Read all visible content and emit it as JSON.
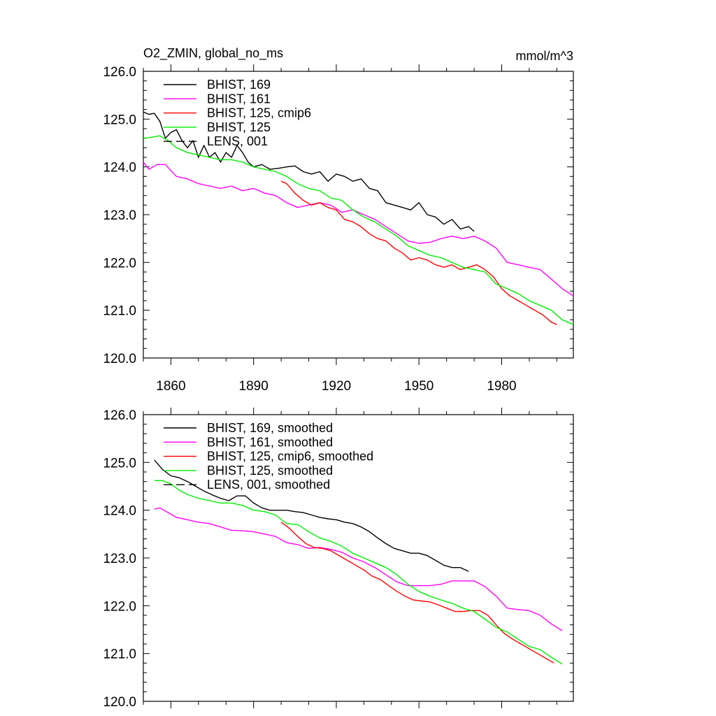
{
  "title_left": "O2_ZMIN, global_no_ms",
  "units": "mmol/m^3",
  "colors": {
    "bhist_169": "#000000",
    "bhist_161": "#ff00ff",
    "bhist_125_cmip6": "#ff0000",
    "bhist_125": "#00ee00",
    "lens_001": "#000000"
  },
  "chart_data": [
    {
      "type": "line",
      "xlim": [
        1850,
        2006
      ],
      "ylim": [
        120,
        126
      ],
      "x_ticks": [
        1860,
        1890,
        1920,
        1950,
        1980
      ],
      "y_ticks": [
        120,
        121,
        122,
        123,
        124,
        125,
        126
      ],
      "y_tick_labels": [
        "120.0",
        "121.0",
        "122.0",
        "123.0",
        "124.0",
        "125.0",
        "126.0"
      ],
      "x_tick_labels": [
        "1860",
        "1890",
        "1920",
        "1950",
        "1980"
      ],
      "grid": false,
      "legend_position": "top-left",
      "series": [
        {
          "name": "BHIST, 169",
          "color": "#000000",
          "dash": "none",
          "x": [
            1850,
            1852,
            1854,
            1856,
            1858,
            1860,
            1862,
            1864,
            1866,
            1868,
            1870,
            1872,
            1874,
            1876,
            1878,
            1880,
            1882,
            1884,
            1886,
            1888,
            1890,
            1893,
            1896,
            1899,
            1902,
            1905,
            1908,
            1911,
            1914,
            1917,
            1920,
            1923,
            1926,
            1929,
            1932,
            1935,
            1938,
            1941,
            1944,
            1947,
            1950,
            1953,
            1956,
            1959,
            1962,
            1965,
            1968,
            1970
          ],
          "y": [
            125.15,
            125.1,
            125.12,
            124.95,
            124.6,
            124.72,
            124.78,
            124.55,
            124.4,
            124.55,
            124.2,
            124.45,
            124.2,
            124.3,
            124.1,
            124.3,
            124.2,
            124.45,
            124.3,
            124.1,
            124.0,
            124.05,
            123.95,
            123.97,
            124.0,
            124.02,
            123.9,
            123.85,
            123.9,
            123.7,
            123.85,
            123.8,
            123.7,
            123.75,
            123.55,
            123.5,
            123.25,
            123.2,
            123.15,
            123.1,
            123.25,
            123.0,
            122.95,
            122.8,
            122.9,
            122.7,
            122.75,
            122.65
          ]
        },
        {
          "name": "BHIST, 161",
          "color": "#ff00ff",
          "dash": "none",
          "x": [
            1850,
            1852,
            1855,
            1858,
            1862,
            1866,
            1870,
            1874,
            1878,
            1882,
            1886,
            1890,
            1894,
            1898,
            1902,
            1906,
            1910,
            1914,
            1918,
            1922,
            1926,
            1930,
            1934,
            1938,
            1942,
            1946,
            1950,
            1954,
            1958,
            1962,
            1966,
            1970,
            1974,
            1978,
            1982,
            1986,
            1990,
            1994,
            1998,
            2002,
            2006
          ],
          "y": [
            124.1,
            123.95,
            124.05,
            124.05,
            123.8,
            123.75,
            123.65,
            123.6,
            123.55,
            123.6,
            123.5,
            123.55,
            123.45,
            123.4,
            123.25,
            123.15,
            123.2,
            123.25,
            123.2,
            123.05,
            123.1,
            123.0,
            122.9,
            122.75,
            122.6,
            122.45,
            122.4,
            122.42,
            122.5,
            122.55,
            122.5,
            122.55,
            122.45,
            122.3,
            122.0,
            121.95,
            121.9,
            121.85,
            121.65,
            121.45,
            121.3
          ]
        },
        {
          "name": "BHIST, 125, cmip6",
          "color": "#ff0000",
          "dash": "none",
          "x": [
            1900,
            1902,
            1905,
            1908,
            1911,
            1914,
            1917,
            1920,
            1923,
            1926,
            1929,
            1932,
            1935,
            1938,
            1941,
            1944,
            1947,
            1950,
            1953,
            1956,
            1959,
            1962,
            1965,
            1968,
            1971,
            1974,
            1977,
            1980,
            1983,
            1986,
            1989,
            1992,
            1995,
            1998,
            2000
          ],
          "y": [
            123.7,
            123.65,
            123.45,
            123.3,
            123.2,
            123.25,
            123.15,
            123.1,
            122.9,
            122.85,
            122.75,
            122.6,
            122.5,
            122.45,
            122.3,
            122.2,
            122.05,
            122.1,
            122.05,
            121.95,
            121.9,
            121.95,
            121.85,
            121.9,
            121.95,
            121.85,
            121.7,
            121.45,
            121.3,
            121.2,
            121.1,
            121.0,
            120.9,
            120.75,
            120.7
          ]
        },
        {
          "name": "BHIST, 125",
          "color": "#00ee00",
          "dash": "none",
          "x": [
            1850,
            1853,
            1856,
            1859,
            1862,
            1866,
            1870,
            1874,
            1878,
            1882,
            1886,
            1890,
            1894,
            1898,
            1902,
            1906,
            1910,
            1914,
            1918,
            1922,
            1926,
            1930,
            1934,
            1938,
            1942,
            1946,
            1950,
            1954,
            1958,
            1962,
            1966,
            1970,
            1974,
            1978,
            1982,
            1986,
            1990,
            1994,
            1998,
            2002,
            2006
          ],
          "y": [
            124.6,
            124.62,
            124.65,
            124.55,
            124.4,
            124.3,
            124.25,
            124.2,
            124.15,
            124.15,
            124.1,
            124.0,
            123.95,
            123.9,
            123.8,
            123.65,
            123.55,
            123.5,
            123.35,
            123.3,
            123.1,
            122.95,
            122.85,
            122.7,
            122.55,
            122.35,
            122.25,
            122.15,
            122.1,
            122.0,
            121.9,
            121.85,
            121.8,
            121.55,
            121.45,
            121.35,
            121.2,
            121.1,
            121.0,
            120.8,
            120.7
          ]
        },
        {
          "name": "LENS, 001",
          "color": "#000000",
          "dash": "dashed",
          "x": [],
          "y": []
        }
      ]
    },
    {
      "type": "line",
      "xlim": [
        1850,
        2006
      ],
      "ylim": [
        120,
        126
      ],
      "x_ticks": [
        1860,
        1890,
        1920,
        1950,
        1980
      ],
      "y_ticks": [
        120,
        121,
        122,
        123,
        124,
        125,
        126
      ],
      "y_tick_labels": [
        "120.0",
        "121.0",
        "122.0",
        "123.0",
        "124.0",
        "125.0",
        "126.0"
      ],
      "x_tick_labels": [],
      "grid": false,
      "legend_position": "top-left",
      "series": [
        {
          "name": "BHIST, 169, smoothed",
          "color": "#000000",
          "dash": "none",
          "x": [
            1854,
            1857,
            1860,
            1863,
            1866,
            1869,
            1872,
            1875,
            1878,
            1881,
            1884,
            1887,
            1890,
            1893,
            1896,
            1899,
            1902,
            1905,
            1908,
            1911,
            1914,
            1917,
            1920,
            1923,
            1926,
            1929,
            1932,
            1935,
            1938,
            1941,
            1944,
            1947,
            1950,
            1953,
            1956,
            1959,
            1962,
            1965,
            1968
          ],
          "y": [
            125.05,
            124.85,
            124.72,
            124.68,
            124.6,
            124.5,
            124.4,
            124.32,
            124.25,
            124.2,
            124.3,
            124.3,
            124.15,
            124.05,
            124.0,
            124.0,
            124.0,
            123.97,
            123.95,
            123.9,
            123.85,
            123.82,
            123.8,
            123.75,
            123.72,
            123.65,
            123.55,
            123.42,
            123.3,
            123.2,
            123.15,
            123.1,
            123.1,
            123.05,
            122.95,
            122.85,
            122.8,
            122.8,
            122.72
          ]
        },
        {
          "name": "BHIST, 161, smoothed",
          "color": "#ff00ff",
          "dash": "none",
          "x": [
            1854,
            1856,
            1859,
            1862,
            1866,
            1870,
            1874,
            1878,
            1882,
            1886,
            1890,
            1894,
            1898,
            1902,
            1906,
            1910,
            1914,
            1918,
            1922,
            1926,
            1930,
            1934,
            1938,
            1942,
            1946,
            1950,
            1954,
            1958,
            1962,
            1966,
            1970,
            1974,
            1978,
            1982,
            1986,
            1990,
            1994,
            1998,
            2002
          ],
          "y": [
            124.02,
            124.05,
            123.95,
            123.85,
            123.8,
            123.75,
            123.72,
            123.65,
            123.58,
            123.57,
            123.55,
            123.5,
            123.45,
            123.32,
            123.28,
            123.2,
            123.22,
            123.18,
            123.12,
            123.0,
            122.92,
            122.8,
            122.65,
            122.5,
            122.42,
            122.42,
            122.42,
            122.45,
            122.52,
            122.52,
            122.52,
            122.4,
            122.2,
            121.95,
            121.92,
            121.9,
            121.8,
            121.62,
            121.48
          ]
        },
        {
          "name": "BHIST, 125, cmip6, smoothed",
          "color": "#ff0000",
          "dash": "none",
          "x": [
            1900,
            1903,
            1906,
            1909,
            1912,
            1915,
            1918,
            1921,
            1924,
            1927,
            1930,
            1933,
            1936,
            1939,
            1942,
            1945,
            1948,
            1951,
            1954,
            1957,
            1960,
            1963,
            1966,
            1969,
            1972,
            1975,
            1978,
            1981,
            1984,
            1987,
            1990,
            1993,
            1996,
            1999
          ],
          "y": [
            123.75,
            123.62,
            123.45,
            123.3,
            123.22,
            123.2,
            123.15,
            123.05,
            122.95,
            122.85,
            122.75,
            122.62,
            122.55,
            122.42,
            122.3,
            122.2,
            122.12,
            122.1,
            122.08,
            122.02,
            121.95,
            121.88,
            121.88,
            121.9,
            121.9,
            121.8,
            121.6,
            121.42,
            121.3,
            121.2,
            121.1,
            121.0,
            120.9,
            120.8
          ]
        },
        {
          "name": "BHIST, 125, smoothed",
          "color": "#00ee00",
          "dash": "none",
          "x": [
            1854,
            1857,
            1860,
            1863,
            1866,
            1870,
            1874,
            1878,
            1882,
            1886,
            1890,
            1894,
            1898,
            1902,
            1906,
            1910,
            1914,
            1918,
            1922,
            1926,
            1930,
            1934,
            1938,
            1942,
            1946,
            1950,
            1954,
            1958,
            1962,
            1966,
            1970,
            1974,
            1978,
            1982,
            1986,
            1990,
            1994,
            1998,
            2002
          ],
          "y": [
            124.62,
            124.62,
            124.55,
            124.42,
            124.33,
            124.25,
            124.2,
            124.15,
            124.15,
            124.1,
            124.0,
            123.97,
            123.9,
            123.72,
            123.7,
            123.55,
            123.42,
            123.35,
            123.25,
            123.1,
            123.0,
            122.9,
            122.8,
            122.65,
            122.45,
            122.3,
            122.2,
            122.12,
            122.05,
            121.95,
            121.88,
            121.72,
            121.55,
            121.45,
            121.3,
            121.15,
            121.08,
            120.92,
            120.78
          ]
        },
        {
          "name": "LENS, 001, smoothed",
          "color": "#000000",
          "dash": "dashed",
          "x": [],
          "y": []
        }
      ]
    }
  ]
}
